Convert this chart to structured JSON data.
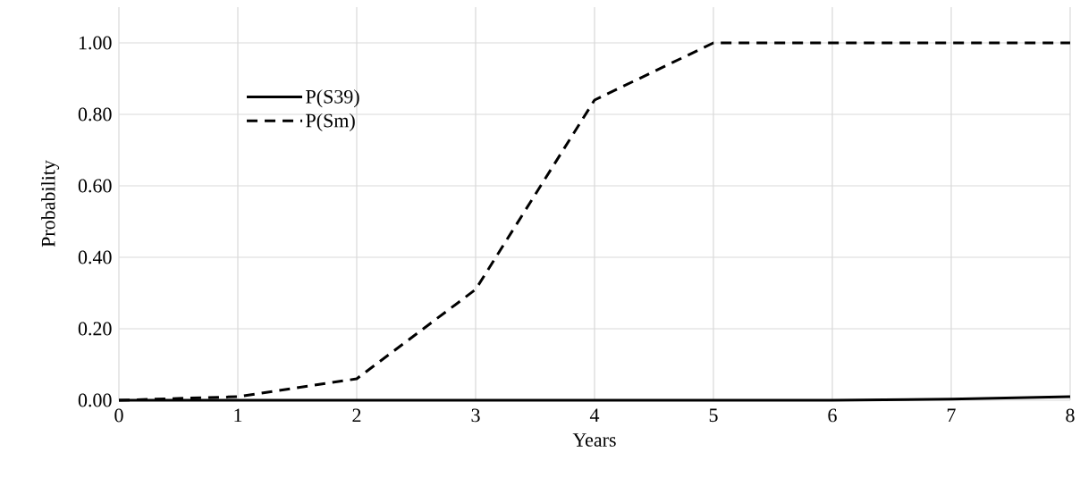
{
  "chart_data": {
    "type": "line",
    "xlabel": "Years",
    "ylabel": "Probability",
    "x": [
      0,
      1,
      2,
      3,
      4,
      5,
      6,
      7,
      8
    ],
    "series": [
      {
        "name": "P(S39)",
        "color": "#000000",
        "line_style": "solid",
        "values": [
          0,
          0,
          0,
          0,
          0,
          0,
          0,
          0.003,
          0.01
        ]
      },
      {
        "name": "P(Sm)",
        "color": "#000000",
        "line_style": "dashed",
        "values": [
          0,
          0.01,
          0.06,
          0.31,
          0.84,
          1.0,
          1.0,
          1.0,
          1.0
        ]
      }
    ],
    "xlim": [
      0,
      8
    ],
    "ylim": [
      0,
      1.1
    ],
    "xticks": [
      0,
      1,
      2,
      3,
      4,
      5,
      6,
      7,
      8
    ],
    "yticks": [
      {
        "value": 0,
        "label": "0.00"
      },
      {
        "value": 0.2,
        "label": "0.20"
      },
      {
        "value": 0.4,
        "label": "0.40"
      },
      {
        "value": 0.6,
        "label": "0.60"
      },
      {
        "value": 0.8,
        "label": "0.80"
      },
      {
        "value": 1.0,
        "label": "1.00"
      }
    ],
    "grid": true,
    "legend": "top left",
    "marker": "none"
  }
}
